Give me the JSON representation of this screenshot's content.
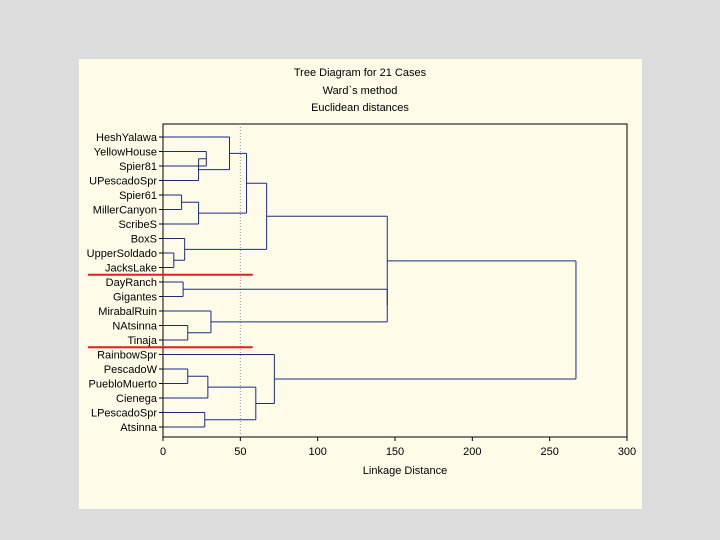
{
  "chart_data": {
    "type": "dendrogram",
    "title": "Tree Diagram for 21 Cases",
    "subtitle1": "Ward`s method",
    "subtitle2": "Euclidean distances",
    "xlabel": "Linkage Distance",
    "xlim": [
      0,
      300
    ],
    "xticks": [
      0,
      50,
      100,
      150,
      200,
      250,
      300
    ],
    "reference_line": 50,
    "leaves": [
      "HeshYalawa",
      "YellowHouse",
      "Spier81",
      "UPescadoSpr",
      "Spier61",
      "MillerCanyon",
      "ScribeS",
      "BoxS",
      "UpperSoldado",
      "JacksLake",
      "DayRanch",
      "Gigantes",
      "MirabalRuin",
      "NAtsinna",
      "Tinaja",
      "RainbowSpr",
      "PescadoW",
      "PuebloMuerto",
      "Cienega",
      "LPescadoSpr",
      "Atsinna"
    ],
    "merges": [
      {
        "a": "L:1",
        "b": "L:2",
        "height": 28
      },
      {
        "a": "L:3",
        "b": "M:0",
        "height": 23
      },
      {
        "a": "L:0",
        "b": "M:1",
        "height": 43
      },
      {
        "a": "L:4",
        "b": "L:5",
        "height": 12
      },
      {
        "a": "L:6",
        "b": "M:3",
        "height": 23
      },
      {
        "a": "M:2",
        "b": "M:4",
        "height": 54
      },
      {
        "a": "L:8",
        "b": "L:9",
        "height": 7
      },
      {
        "a": "L:7",
        "b": "M:6",
        "height": 14
      },
      {
        "a": "M:5",
        "b": "M:7",
        "height": 67
      },
      {
        "a": "L:10",
        "b": "L:11",
        "height": 13
      },
      {
        "a": "L:13",
        "b": "L:14",
        "height": 16
      },
      {
        "a": "L:12",
        "b": "M:10",
        "height": 31
      },
      {
        "a": "M:9",
        "b": "M:11",
        "height": 145
      },
      {
        "a": "M:8",
        "b": "M:12",
        "height": 145
      },
      {
        "a": "L:16",
        "b": "L:17",
        "height": 16
      },
      {
        "a": "L:18",
        "b": "M:14",
        "height": 29
      },
      {
        "a": "L:19",
        "b": "L:20",
        "height": 27
      },
      {
        "a": "M:15",
        "b": "M:16",
        "height": 60
      },
      {
        "a": "L:15",
        "b": "M:17",
        "height": 72
      },
      {
        "a": "M:13",
        "b": "M:18",
        "height": 267
      }
    ],
    "cut_lines_between_leaves": [
      9.5,
      14.5
    ]
  },
  "colors": {
    "tree": "#1c2a86",
    "cut": "#e0201e",
    "ref": "#8a8aa0",
    "frame": "#000000"
  }
}
